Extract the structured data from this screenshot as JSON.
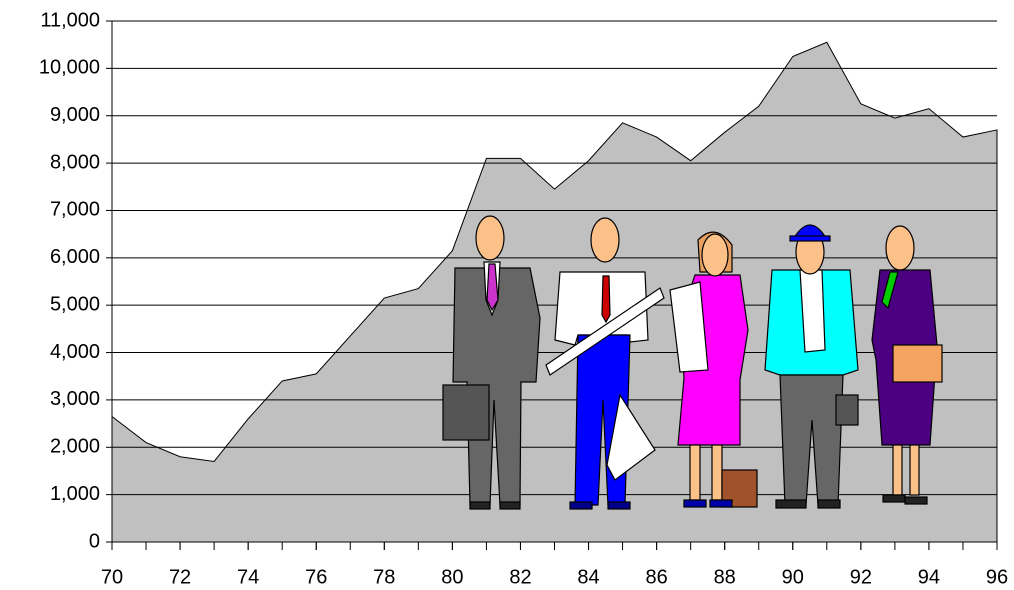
{
  "chart_data": {
    "type": "area",
    "x": [
      70,
      71,
      72,
      73,
      74,
      75,
      76,
      77,
      78,
      79,
      80,
      81,
      82,
      83,
      84,
      85,
      86,
      87,
      88,
      89,
      90,
      91,
      92,
      93,
      94,
      95,
      96
    ],
    "values": [
      2650,
      2100,
      1800,
      1700,
      2600,
      3400,
      3550,
      4350,
      5150,
      5350,
      6150,
      8100,
      8100,
      7450,
      8050,
      8850,
      8550,
      8050,
      8650,
      9200,
      10250,
      10550,
      9250,
      8950,
      9150,
      8550,
      8700
    ],
    "color": "#c0c0c0",
    "xlim": [
      70,
      96
    ],
    "xticks": [
      70,
      72,
      74,
      76,
      78,
      80,
      82,
      84,
      86,
      88,
      90,
      92,
      94,
      96
    ],
    "ylim": [
      0,
      11000
    ],
    "yticks": [
      0,
      {
        "value": 1000,
        "label": "1,000"
      },
      {
        "value": 2000,
        "label": "2,000"
      },
      {
        "value": 3000,
        "label": "3,000"
      },
      {
        "value": 4000,
        "label": "4,000"
      },
      {
        "value": 5000,
        "label": "5,000"
      },
      {
        "value": 6000,
        "label": "6,000"
      },
      {
        "value": 7000,
        "label": "7,000"
      },
      {
        "value": 8000,
        "label": "8,000"
      },
      {
        "value": 9000,
        "label": "9,000"
      },
      {
        "value": 10000,
        "label": "10,000"
      },
      {
        "value": 11000,
        "label": "11,000"
      }
    ],
    "grid": true
  }
}
